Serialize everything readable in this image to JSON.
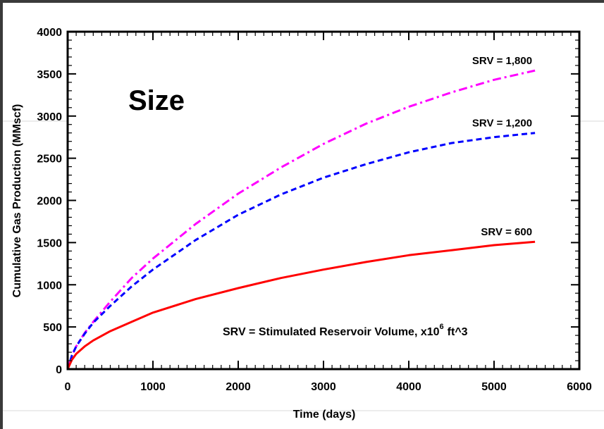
{
  "chart_data": {
    "type": "line",
    "title": "Size",
    "xlabel": "Time (days)",
    "ylabel": "Cumulative Gas Production (MMscf)",
    "xlim": [
      0,
      6000
    ],
    "ylim": [
      0,
      4000
    ],
    "xticks": [
      0,
      1000,
      2000,
      3000,
      4000,
      5000,
      6000
    ],
    "yticks": [
      0,
      500,
      1000,
      1500,
      2000,
      2500,
      3000,
      3500,
      4000
    ],
    "grid": false,
    "legend": "none",
    "note": {
      "prefix": "SRV = Stimulated Reservoir Volume, ",
      "multiplier": "x10",
      "exponent": "6",
      "unit": "ft^3"
    },
    "series": [
      {
        "name": "SRV = 1,800",
        "color": "#ff00ff",
        "style": "dashdot",
        "x": [
          0,
          50,
          100,
          200,
          300,
          500,
          750,
          1000,
          1500,
          2000,
          2500,
          3000,
          3500,
          4000,
          4500,
          5000,
          5480
        ],
        "y": [
          0,
          160,
          270,
          430,
          560,
          800,
          1080,
          1310,
          1720,
          2080,
          2390,
          2670,
          2910,
          3110,
          3280,
          3430,
          3540
        ]
      },
      {
        "name": "SRV = 1,200",
        "color": "#0000ff",
        "style": "dashed",
        "x": [
          0,
          50,
          100,
          200,
          300,
          500,
          750,
          1000,
          1500,
          2000,
          2500,
          3000,
          3500,
          4000,
          4500,
          5000,
          5480
        ],
        "y": [
          0,
          160,
          270,
          420,
          550,
          750,
          980,
          1180,
          1530,
          1830,
          2070,
          2270,
          2430,
          2570,
          2680,
          2750,
          2800
        ]
      },
      {
        "name": "SRV = 600",
        "color": "#ff0000",
        "style": "solid",
        "x": [
          0,
          50,
          100,
          200,
          300,
          500,
          750,
          1000,
          1500,
          2000,
          2500,
          3000,
          3500,
          4000,
          4500,
          5000,
          5480
        ],
        "y": [
          0,
          110,
          180,
          270,
          340,
          450,
          560,
          670,
          830,
          960,
          1080,
          1180,
          1270,
          1350,
          1410,
          1470,
          1510
        ]
      }
    ]
  }
}
